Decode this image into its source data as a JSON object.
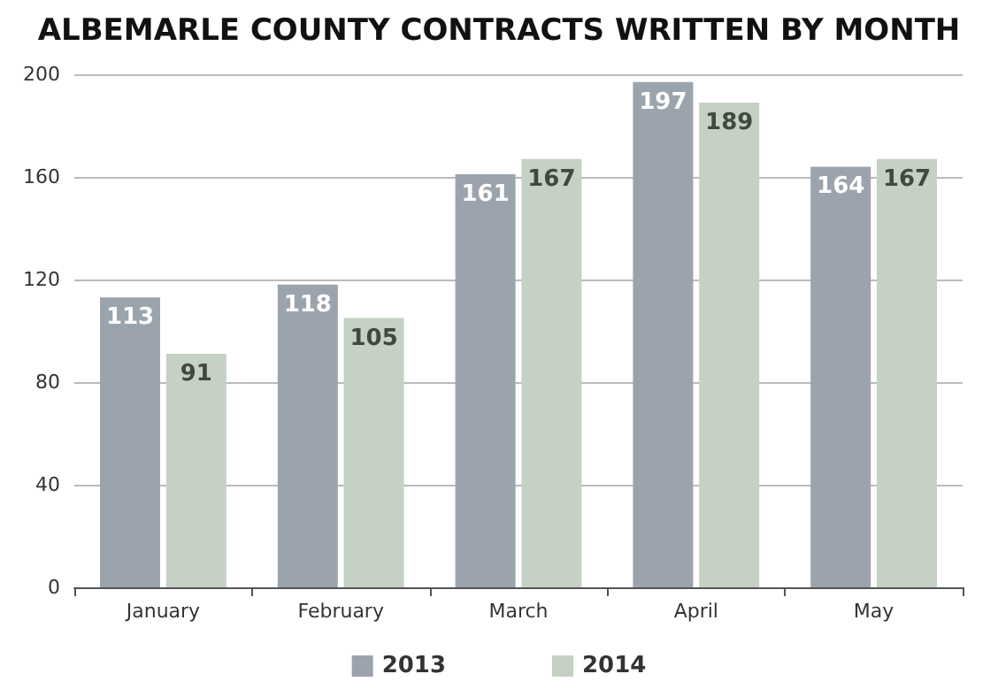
{
  "chart_data": {
    "type": "bar",
    "title": "ALBEMARLE COUNTY CONTRACTS WRITTEN BY MONTH",
    "categories": [
      "January",
      "February",
      "March",
      "April",
      "May"
    ],
    "series": [
      {
        "name": "2013",
        "color": "#9ba4ac",
        "values": [
          113,
          118,
          161,
          197,
          164
        ]
      },
      {
        "name": "2014",
        "color": "#c4d1c4",
        "values": [
          91,
          105,
          167,
          189,
          167
        ]
      }
    ],
    "ylim": [
      0,
      200
    ],
    "yticks": [
      0,
      40,
      80,
      120,
      160,
      200
    ],
    "grid": "y",
    "legend": "bottom",
    "data_labels": true
  }
}
